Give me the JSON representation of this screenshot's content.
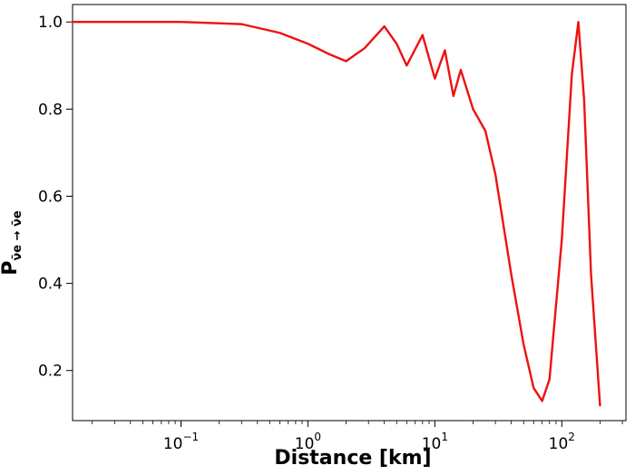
{
  "chart_data": {
    "type": "line",
    "xlabel": "Distance [km]",
    "ylabel": {
      "main": "P",
      "subscript": "ν̄e → ν̄e"
    },
    "x_scale": "log",
    "xlim": [
      0.014,
      320
    ],
    "ylim": [
      0.085,
      1.04
    ],
    "x_ticks": [
      {
        "value": 0.1,
        "base": "10",
        "exp": "−1"
      },
      {
        "value": 1,
        "base": "10",
        "exp": "0"
      },
      {
        "value": 10,
        "base": "10",
        "exp": "1"
      },
      {
        "value": 100,
        "base": "10",
        "exp": "2"
      }
    ],
    "y_ticks": [
      {
        "value": 0.2,
        "label": "0.2"
      },
      {
        "value": 0.4,
        "label": "0.4"
      },
      {
        "value": 0.6,
        "label": "0.6"
      },
      {
        "value": 0.8,
        "label": "0.8"
      },
      {
        "value": 1.0,
        "label": "1.0"
      }
    ],
    "grid": false,
    "series": [
      {
        "color": "#ee1111",
        "x_range": [
          0.014,
          200
        ],
        "min_value": 0.12,
        "max_value": 1.0,
        "x": [
          0.014,
          0.1,
          0.3,
          0.6,
          1.0,
          1.5,
          2.0,
          2.8,
          4.0,
          5.0,
          6.0,
          8.0,
          10.0,
          12.0,
          14.0,
          16.0,
          20.0,
          25.0,
          30.0,
          40.0,
          50.0,
          60.0,
          70.0,
          80.0,
          100.0,
          120.0,
          135.0,
          150.0,
          170.0,
          200.0
        ],
        "y": [
          1.0,
          1.0,
          0.995,
          0.975,
          0.95,
          0.925,
          0.91,
          0.94,
          0.99,
          0.95,
          0.9,
          0.97,
          0.87,
          0.935,
          0.83,
          0.89,
          0.8,
          0.75,
          0.65,
          0.42,
          0.26,
          0.16,
          0.13,
          0.18,
          0.5,
          0.88,
          1.0,
          0.82,
          0.42,
          0.12
        ]
      }
    ]
  }
}
